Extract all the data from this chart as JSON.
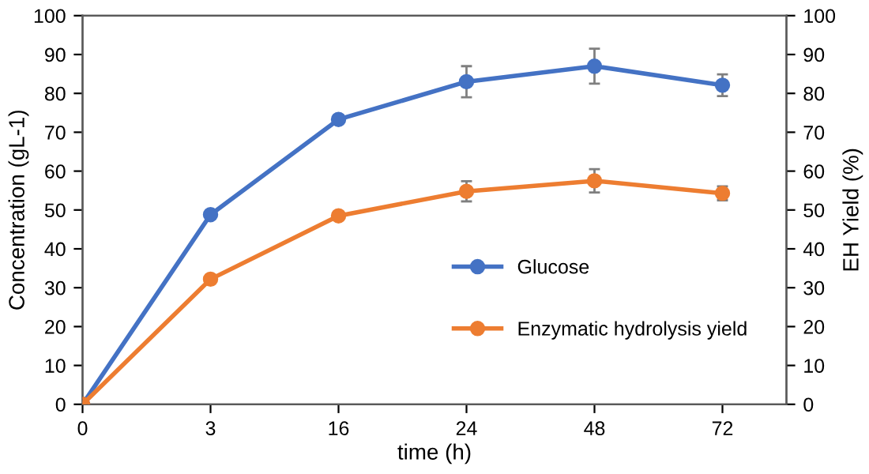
{
  "chart_data": {
    "type": "line",
    "xlabel": "time (h)",
    "ylabel": "Concentration (gL-1)",
    "y2label": "EH Yield (%)",
    "categories": [
      "0",
      "3",
      "16",
      "24",
      "48",
      "72"
    ],
    "series": [
      {
        "name": "Glucose",
        "color": "#4472c4",
        "values": [
          0,
          48.8,
          73.3,
          83,
          87,
          82.1
        ],
        "errors": [
          null,
          null,
          null,
          4,
          4.5,
          2.8
        ]
      },
      {
        "name": "Enzymatic hydrolysis yield",
        "color": "#ed7d31",
        "axis": "y2",
        "values": [
          0,
          32.2,
          48.5,
          54.8,
          57.5,
          54.3
        ],
        "errors": [
          null,
          null,
          null,
          2.6,
          3,
          1.8
        ]
      }
    ],
    "ylim": [
      0,
      100
    ],
    "yticks": [
      0,
      10,
      20,
      30,
      40,
      50,
      60,
      70,
      80,
      90,
      100
    ],
    "y2lim": [
      0,
      100
    ],
    "y2ticks": [
      0,
      10,
      20,
      30,
      40,
      50,
      60,
      70,
      80,
      90,
      100
    ],
    "grid": false,
    "legend": "right",
    "marker": "circle",
    "line_style": "solid"
  }
}
